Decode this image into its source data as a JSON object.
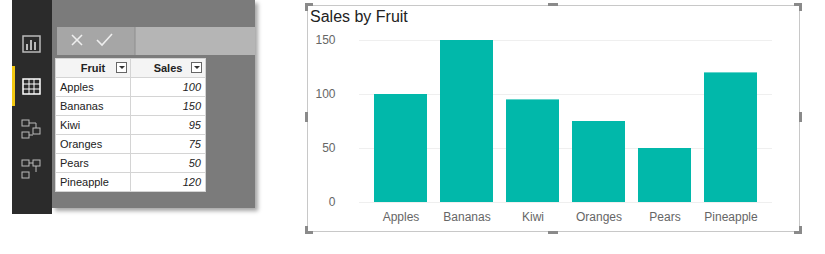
{
  "table": {
    "headers": [
      "Fruit",
      "Sales"
    ],
    "rows": [
      [
        "Apples",
        100
      ],
      [
        "Bananas",
        150
      ],
      [
        "Kiwi",
        95
      ],
      [
        "Oranges",
        75
      ],
      [
        "Pears",
        50
      ],
      [
        "Pineapple",
        120
      ]
    ]
  },
  "chart_data": {
    "type": "bar",
    "title": "Sales by Fruit",
    "categories": [
      "Apples",
      "Bananas",
      "Kiwi",
      "Oranges",
      "Pears",
      "Pineapple"
    ],
    "values": [
      100,
      150,
      95,
      75,
      50,
      120
    ],
    "color": "#01b8aa",
    "ylim": [
      0,
      150
    ],
    "yticks": [
      0,
      50,
      100,
      150
    ],
    "grid": true
  }
}
